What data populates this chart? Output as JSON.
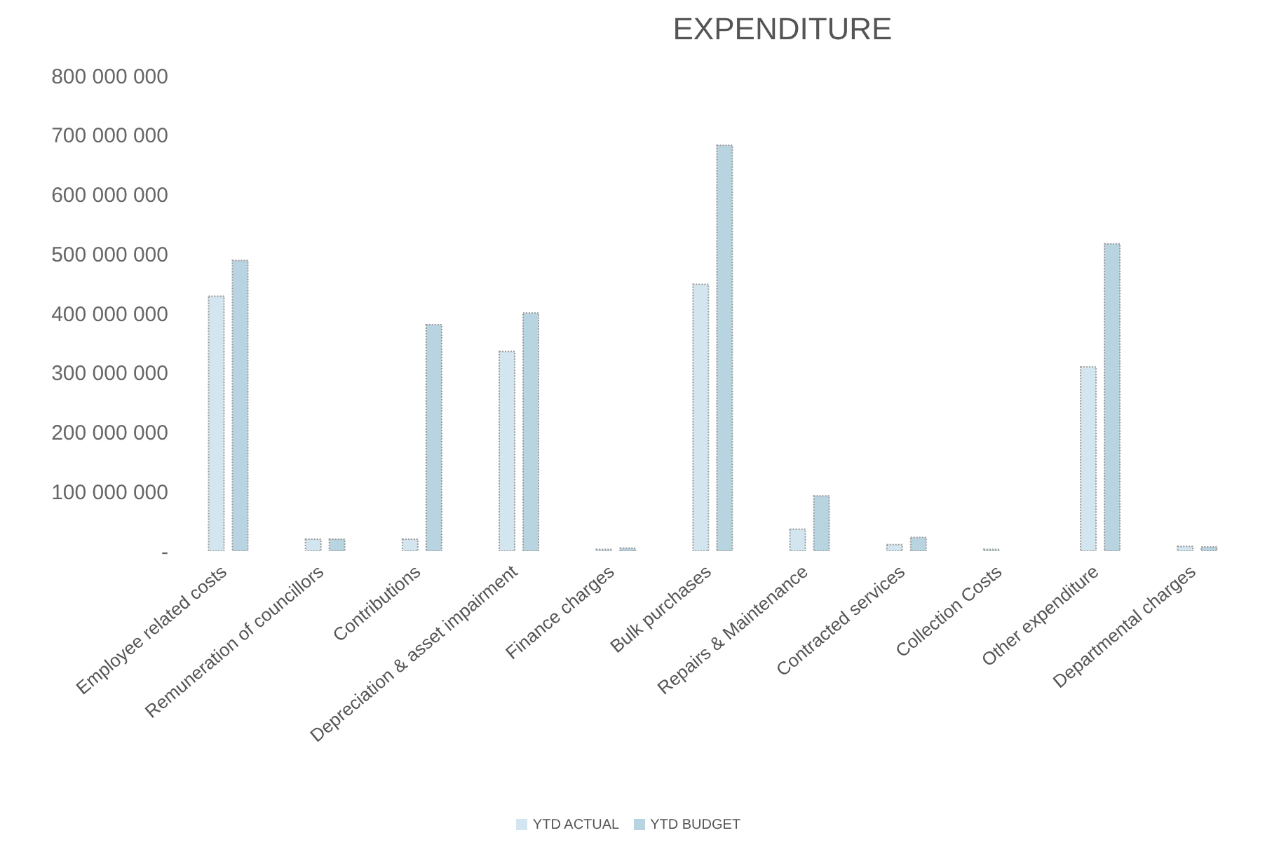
{
  "chart_data": {
    "type": "bar",
    "title": "EXPENDITURE",
    "categories": [
      "Employee related costs",
      "Remuneration of councillors",
      "Contributions",
      "Depreciation & asset impairment",
      "Finance charges",
      "Bulk purchases",
      "Repairs & Maintenance",
      "Contracted services",
      "Collection Costs",
      "Other expenditure",
      "Departmental charges"
    ],
    "series": [
      {
        "name": "YTD ACTUAL",
        "color": "#d3e5ee",
        "values": [
          429000000,
          20000000,
          20000000,
          336000000,
          3000000,
          449000000,
          37000000,
          11000000,
          3000000,
          310000000,
          8000000
        ]
      },
      {
        "name": "YTD BUDGET",
        "color": "#b9d4e1",
        "values": [
          489000000,
          20000000,
          381000000,
          401000000,
          5000000,
          683000000,
          93000000,
          23000000,
          null,
          517000000,
          7000000
        ]
      }
    ],
    "ylim": [
      0,
      800000000
    ],
    "yticks": [
      {
        "value": 0,
        "label": "-"
      },
      {
        "value": 100000000,
        "label": "100 000 000"
      },
      {
        "value": 200000000,
        "label": "200 000 000"
      },
      {
        "value": 300000000,
        "label": "300 000 000"
      },
      {
        "value": 400000000,
        "label": "400 000 000"
      },
      {
        "value": 500000000,
        "label": "500 000 000"
      },
      {
        "value": 600000000,
        "label": "600 000 000"
      },
      {
        "value": 700000000,
        "label": "700 000 000"
      },
      {
        "value": 800000000,
        "label": "800 000 000"
      }
    ],
    "grid": false,
    "legend": "bottom"
  }
}
